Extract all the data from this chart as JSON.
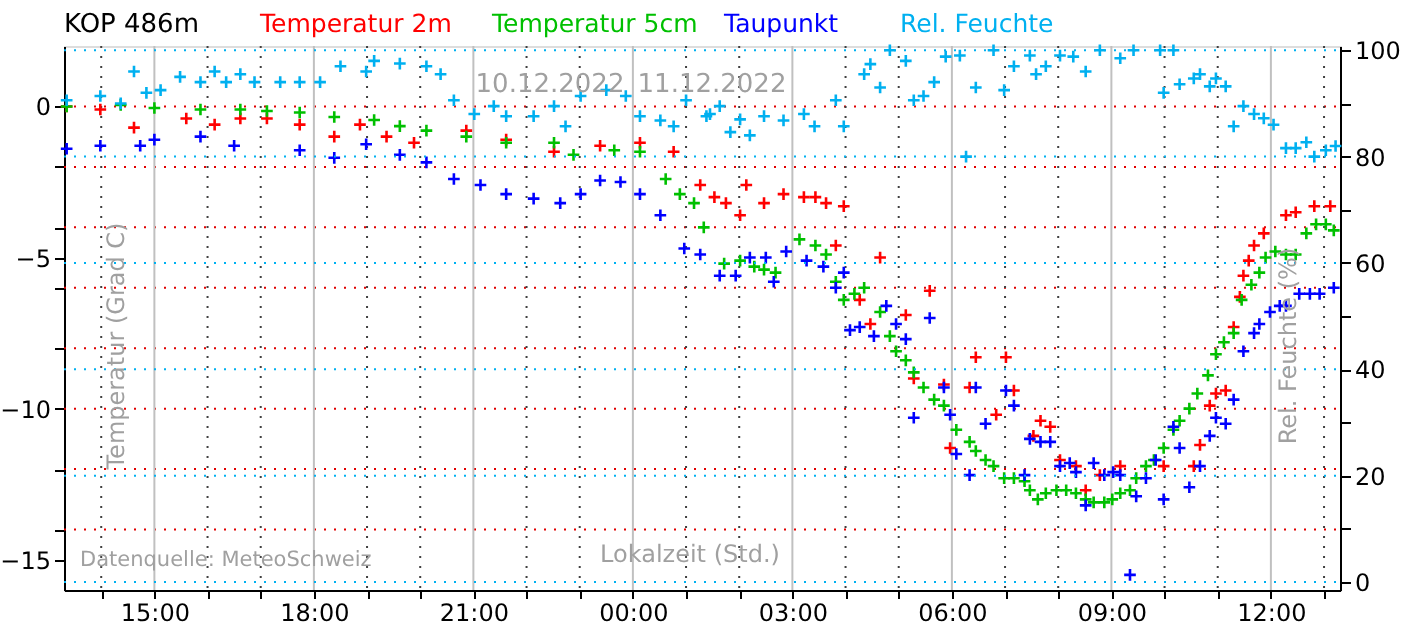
{
  "chart_data": {
    "type": "scatter",
    "title": "KOP  486m",
    "xlabel": "Lokalzeit (Std.)",
    "ylabel": "Temperatur (Grad C)",
    "y2label": "Rel. Feuchte (%)",
    "annotations": [
      "10.12.2022",
      "11.12.2022",
      "Datenquelle: MeteoSchweiz"
    ],
    "xlim": [
      "2022-12-10T13:18",
      "2022-12-11T13:18"
    ],
    "xticks": [
      {
        "value": "2022-12-10T14:00",
        "label": null
      },
      {
        "value": "2022-12-10T15:00",
        "label": "15:00"
      },
      {
        "value": "2022-12-10T16:00",
        "label": null
      },
      {
        "value": "2022-12-10T17:00",
        "label": null
      },
      {
        "value": "2022-12-10T18:00",
        "label": "18:00"
      },
      {
        "value": "2022-12-10T19:00",
        "label": null
      },
      {
        "value": "2022-12-10T20:00",
        "label": null
      },
      {
        "value": "2022-12-10T21:00",
        "label": "21:00"
      },
      {
        "value": "2022-12-10T22:00",
        "label": null
      },
      {
        "value": "2022-12-10T23:00",
        "label": null
      },
      {
        "value": "2022-12-11T00:00",
        "label": "00:00"
      },
      {
        "value": "2022-12-11T01:00",
        "label": null
      },
      {
        "value": "2022-12-11T02:00",
        "label": null
      },
      {
        "value": "2022-12-11T03:00",
        "label": "03:00"
      },
      {
        "value": "2022-12-11T04:00",
        "label": null
      },
      {
        "value": "2022-12-11T05:00",
        "label": null
      },
      {
        "value": "2022-12-11T06:00",
        "label": "06:00"
      },
      {
        "value": "2022-12-11T07:00",
        "label": null
      },
      {
        "value": "2022-12-11T08:00",
        "label": null
      },
      {
        "value": "2022-12-11T09:00",
        "label": "09:00"
      },
      {
        "value": "2022-12-11T10:00",
        "label": null
      },
      {
        "value": "2022-12-11T11:00",
        "label": null
      },
      {
        "value": "2022-12-11T12:00",
        "label": "12:00"
      },
      {
        "value": "2022-12-11T13:00",
        "label": null
      }
    ],
    "ylim": [
      -16,
      2
    ],
    "yticks": [
      -15,
      {
        "value": -14,
        "label": null
      },
      {
        "value": -12,
        "label": null
      },
      -10,
      {
        "value": -8,
        "label": null
      },
      {
        "value": -6,
        "label": null
      },
      -5,
      {
        "value": -4,
        "label": null
      },
      {
        "value": -2,
        "label": null
      },
      0
    ],
    "y2lim": [
      -1.5,
      100.8
    ],
    "y2ticks": [
      0,
      {
        "value": 10,
        "label": null
      },
      20,
      {
        "value": 30,
        "label": null
      },
      40,
      {
        "value": 50,
        "label": null
      },
      60,
      {
        "value": 70,
        "label": null
      },
      80,
      {
        "value": 90,
        "label": null
      },
      100
    ],
    "grid": true,
    "legend": "top",
    "marker": "cross",
    "series": [
      {
        "name": "Temperatur 2m",
        "color": "#ff0000",
        "x": [
          "2022-12-10T13:21",
          "2022-12-10T13:59",
          "2022-12-10T14:37",
          "2022-12-10T15:36",
          "2022-12-10T16:08",
          "2022-12-10T16:37",
          "2022-12-10T17:07",
          "2022-12-10T17:44",
          "2022-12-10T18:23",
          "2022-12-10T18:52",
          "2022-12-10T19:22",
          "2022-12-10T19:53",
          "2022-12-10T20:52",
          "2022-12-10T21:37",
          "2022-12-10T22:31",
          "2022-12-10T23:23",
          "2022-12-11T00:08",
          "2022-12-11T00:46",
          "2022-12-11T01:16",
          "2022-12-11T01:32",
          "2022-12-11T01:45",
          "2022-12-11T02:01",
          "2022-12-11T02:08",
          "2022-12-11T02:28",
          "2022-12-11T02:50",
          "2022-12-11T03:13",
          "2022-12-11T03:26",
          "2022-12-11T03:38",
          "2022-12-11T03:49",
          "2022-12-11T03:58",
          "2022-12-11T04:16",
          "2022-12-11T04:28",
          "2022-12-11T04:39",
          "2022-12-11T05:08",
          "2022-12-11T05:17",
          "2022-12-11T05:35",
          "2022-12-11T05:51",
          "2022-12-11T05:58",
          "2022-12-11T06:20",
          "2022-12-11T06:27",
          "2022-12-11T06:50",
          "2022-12-11T07:01",
          "2022-12-11T07:10",
          "2022-12-11T07:32",
          "2022-12-11T07:40",
          "2022-12-11T07:51",
          "2022-12-11T08:02",
          "2022-12-11T08:20",
          "2022-12-11T08:31",
          "2022-12-11T08:47",
          "2022-12-11T09:10",
          "2022-12-11T09:59",
          "2022-12-11T10:33",
          "2022-12-11T10:40",
          "2022-12-11T10:51",
          "2022-12-11T10:58",
          "2022-12-11T11:09",
          "2022-12-11T11:18",
          "2022-12-11T11:25",
          "2022-12-11T11:29",
          "2022-12-11T11:35",
          "2022-12-11T11:41",
          "2022-12-11T11:52",
          "2022-12-11T12:17",
          "2022-12-11T12:28",
          "2022-12-11T12:49",
          "2022-12-11T13:07"
        ],
        "values": [
          0,
          -0.1,
          -0.7,
          -0.4,
          -0.6,
          -0.4,
          -0.4,
          -0.6,
          -1.0,
          -0.6,
          -1.0,
          -1.2,
          -0.8,
          -1.1,
          -1.5,
          -1.3,
          -1.2,
          -1.5,
          -2.6,
          -3.0,
          -3.2,
          -3.6,
          -2.6,
          -3.2,
          -2.9,
          -3.0,
          -3.0,
          -3.2,
          -4.6,
          -3.3,
          -6.4,
          -7.2,
          -5.0,
          -6.9,
          -9.0,
          -6.1,
          -9.2,
          -11.3,
          -9.3,
          -8.3,
          -10.2,
          -8.3,
          -9.4,
          -10.9,
          -10.4,
          -10.6,
          -11.7,
          -11.9,
          -12.7,
          -12.2,
          -11.9,
          -11.9,
          -11.9,
          -11.2,
          -9.9,
          -9.5,
          -9.4,
          -7.3,
          -6.3,
          -5.6,
          -5.1,
          -4.6,
          -4.2,
          -3.6,
          -3.5,
          -3.3,
          -3.3
        ]
      },
      {
        "name": "Temperatur 5cm",
        "color": "#00c000",
        "x": [
          "2022-12-10T13:21",
          "2022-12-10T14:22",
          "2022-12-10T15:00",
          "2022-12-10T15:52",
          "2022-12-10T16:37",
          "2022-12-10T17:07",
          "2022-12-10T17:44",
          "2022-12-10T18:23",
          "2022-12-10T19:08",
          "2022-12-10T19:37",
          "2022-12-10T20:07",
          "2022-12-10T20:52",
          "2022-12-10T21:37",
          "2022-12-10T22:31",
          "2022-12-10T22:53",
          "2022-12-10T23:39",
          "2022-12-11T00:08",
          "2022-12-11T00:37",
          "2022-12-11T00:53",
          "2022-12-11T01:09",
          "2022-12-11T01:20",
          "2022-12-11T01:43",
          "2022-12-11T02:01",
          "2022-12-11T02:17",
          "2022-12-11T02:28",
          "2022-12-11T02:41",
          "2022-12-11T03:08",
          "2022-12-11T03:26",
          "2022-12-11T03:38",
          "2022-12-11T03:49",
          "2022-12-11T03:58",
          "2022-12-11T04:10",
          "2022-12-11T04:21",
          "2022-12-11T04:39",
          "2022-12-11T04:50",
          "2022-12-11T04:57",
          "2022-12-11T05:08",
          "2022-12-11T05:17",
          "2022-12-11T05:28",
          "2022-12-11T05:40",
          "2022-12-11T05:51",
          "2022-12-11T06:05",
          "2022-12-11T06:20",
          "2022-12-11T06:27",
          "2022-12-11T06:38",
          "2022-12-11T06:47",
          "2022-12-11T06:59",
          "2022-12-11T07:10",
          "2022-12-11T07:22",
          "2022-12-11T07:28",
          "2022-12-11T07:37",
          "2022-12-11T07:46",
          "2022-12-11T07:58",
          "2022-12-11T08:09",
          "2022-12-11T08:20",
          "2022-12-11T08:31",
          "2022-12-11T08:40",
          "2022-12-11T08:52",
          "2022-12-11T09:01",
          "2022-12-11T09:10",
          "2022-12-11T09:21",
          "2022-12-11T09:28",
          "2022-12-11T09:39",
          "2022-12-11T09:48",
          "2022-12-11T09:59",
          "2022-12-11T10:10",
          "2022-12-11T10:17",
          "2022-12-11T10:28",
          "2022-12-11T10:37",
          "2022-12-11T10:49",
          "2022-12-11T10:58",
          "2022-12-11T11:07",
          "2022-12-11T11:18",
          "2022-12-11T11:27",
          "2022-12-11T11:38",
          "2022-12-11T11:47",
          "2022-12-11T11:54",
          "2022-12-11T12:05",
          "2022-12-11T12:17",
          "2022-12-11T12:28",
          "2022-12-11T12:40",
          "2022-12-11T12:51",
          "2022-12-11T13:02",
          "2022-12-11T13:11"
        ],
        "values": [
          0,
          0.05,
          -0.05,
          -0.1,
          -0.1,
          -0.15,
          -0.2,
          -0.35,
          -0.45,
          -0.65,
          -0.8,
          -1.0,
          -1.2,
          -1.2,
          -1.6,
          -1.45,
          -1.5,
          -2.4,
          -2.9,
          -3.2,
          -4.0,
          -5.2,
          -5.1,
          -5.3,
          -5.4,
          -5.5,
          -4.4,
          -4.6,
          -4.9,
          -5.8,
          -6.4,
          -6.2,
          -6.0,
          -6.8,
          -7.6,
          -8.1,
          -8.4,
          -8.8,
          -9.3,
          -9.7,
          -9.9,
          -10.7,
          -11.1,
          -11.4,
          -11.7,
          -11.9,
          -12.3,
          -12.3,
          -12.4,
          -12.7,
          -13.0,
          -12.8,
          -12.7,
          -12.7,
          -12.8,
          -13.0,
          -13.1,
          -13.1,
          -13.0,
          -12.8,
          -12.7,
          -12.3,
          -11.9,
          -11.7,
          -11.3,
          -10.7,
          -10.4,
          -10.0,
          -9.5,
          -8.9,
          -8.2,
          -7.8,
          -7.5,
          -6.4,
          -5.9,
          -5.5,
          -5.0,
          -4.8,
          -4.9,
          -4.9,
          -4.2,
          -3.9,
          -3.9,
          -4.1
        ]
      },
      {
        "name": "Taupunkt",
        "color": "#0000ff",
        "x": [
          "2022-12-10T13:21",
          "2022-12-10T13:59",
          "2022-12-10T14:44",
          "2022-12-10T15:00",
          "2022-12-10T15:52",
          "2022-12-10T16:30",
          "2022-12-10T17:44",
          "2022-12-10T18:23",
          "2022-12-10T18:59",
          "2022-12-10T19:37",
          "2022-12-10T20:07",
          "2022-12-10T20:38",
          "2022-12-10T21:08",
          "2022-12-10T21:37",
          "2022-12-10T22:08",
          "2022-12-10T22:38",
          "2022-12-10T23:01",
          "2022-12-10T23:23",
          "2022-12-10T23:46",
          "2022-12-11T00:08",
          "2022-12-11T00:31",
          "2022-12-11T00:58",
          "2022-12-11T01:16",
          "2022-12-11T01:38",
          "2022-12-11T01:56",
          "2022-12-11T02:12",
          "2022-12-11T02:30",
          "2022-12-11T02:39",
          "2022-12-11T02:53",
          "2022-12-11T03:16",
          "2022-12-11T03:35",
          "2022-12-11T03:49",
          "2022-12-11T03:58",
          "2022-12-11T04:05",
          "2022-12-11T04:16",
          "2022-12-11T04:32",
          "2022-12-11T04:46",
          "2022-12-11T04:57",
          "2022-12-11T05:08",
          "2022-12-11T05:17",
          "2022-12-11T05:35",
          "2022-12-11T05:51",
          "2022-12-11T05:58",
          "2022-12-11T06:05",
          "2022-12-11T06:20",
          "2022-12-11T06:27",
          "2022-12-11T06:38",
          "2022-12-11T07:01",
          "2022-12-11T07:10",
          "2022-12-11T07:22",
          "2022-12-11T07:28",
          "2022-12-11T07:40",
          "2022-12-11T07:51",
          "2022-12-11T08:02",
          "2022-12-11T08:13",
          "2022-12-11T08:20",
          "2022-12-11T08:31",
          "2022-12-11T08:40",
          "2022-12-11T08:52",
          "2022-12-11T09:02",
          "2022-12-11T09:10",
          "2022-12-11T09:21",
          "2022-12-11T09:28",
          "2022-12-11T09:39",
          "2022-12-11T09:50",
          "2022-12-11T09:59",
          "2022-12-11T10:10",
          "2022-12-11T10:17",
          "2022-12-11T10:28",
          "2022-12-11T10:40",
          "2022-12-11T10:51",
          "2022-12-11T10:58",
          "2022-12-11T11:09",
          "2022-12-11T11:18",
          "2022-12-11T11:29",
          "2022-12-11T11:41",
          "2022-12-11T11:47",
          "2022-12-11T11:59",
          "2022-12-11T12:10",
          "2022-12-11T12:17",
          "2022-12-11T12:32",
          "2022-12-11T12:44",
          "2022-12-11T12:55",
          "2022-12-11T13:11"
        ],
        "values": [
          -1.4,
          -1.3,
          -1.3,
          -1.1,
          -1.0,
          -1.3,
          -1.45,
          -1.7,
          -1.25,
          -1.6,
          -1.85,
          -2.4,
          -2.6,
          -2.9,
          -3.05,
          -3.2,
          -2.9,
          -2.45,
          -2.5,
          -2.9,
          -3.6,
          -4.7,
          -4.9,
          -5.6,
          -5.6,
          -5.0,
          -5.0,
          -5.8,
          -4.8,
          -5.1,
          -5.3,
          -6.0,
          -5.5,
          -7.4,
          -7.3,
          -7.6,
          -6.6,
          -7.2,
          -7.7,
          -10.3,
          -7.0,
          -9.3,
          -10.2,
          -11.5,
          -12.2,
          -9.3,
          -10.5,
          -9.4,
          -9.9,
          -12.2,
          -11.0,
          -11.1,
          -11.1,
          -11.9,
          -11.8,
          -12.1,
          -13.2,
          -11.8,
          -12.2,
          -12.1,
          -12.2,
          -15.5,
          -12.9,
          -12.3,
          -11.7,
          -13.0,
          -10.6,
          -11.3,
          -12.6,
          -11.9,
          -10.9,
          -10.3,
          -10.5,
          -9.7,
          -8.1,
          -7.5,
          -7.2,
          -6.8,
          -6.6,
          -6.6,
          -6.2,
          -6.2,
          -6.2,
          -6.0
        ]
      },
      {
        "name": "Rel. Feuchte",
        "color": "#00b0f0",
        "axis": "y2",
        "x": [
          "2022-12-10T13:21",
          "2022-12-10T13:59",
          "2022-12-10T14:22",
          "2022-12-10T14:37",
          "2022-12-10T14:51",
          "2022-12-10T15:07",
          "2022-12-10T15:29",
          "2022-12-10T15:52",
          "2022-12-10T16:08",
          "2022-12-10T16:21",
          "2022-12-10T16:37",
          "2022-12-10T16:53",
          "2022-12-10T17:22",
          "2022-12-10T17:44",
          "2022-12-10T18:07",
          "2022-12-10T18:30",
          "2022-12-10T18:59",
          "2022-12-10T19:08",
          "2022-12-10T19:37",
          "2022-12-10T20:07",
          "2022-12-10T20:23",
          "2022-12-10T20:38",
          "2022-12-10T21:01",
          "2022-12-10T21:23",
          "2022-12-10T21:37",
          "2022-12-10T22:08",
          "2022-12-10T22:31",
          "2022-12-10T22:44",
          "2022-12-10T23:01",
          "2022-12-10T23:30",
          "2022-12-10T23:52",
          "2022-12-11T00:08",
          "2022-12-11T00:31",
          "2022-12-11T00:46",
          "2022-12-11T01:00",
          "2022-12-11T01:23",
          "2022-12-11T01:27",
          "2022-12-11T01:38",
          "2022-12-11T01:50",
          "2022-12-11T02:01",
          "2022-12-11T02:12",
          "2022-12-11T02:28",
          "2022-12-11T02:50",
          "2022-12-11T03:13",
          "2022-12-11T03:25",
          "2022-12-11T03:49",
          "2022-12-11T03:58",
          "2022-12-11T04:21",
          "2022-12-11T04:28",
          "2022-12-11T04:39",
          "2022-12-11T04:50",
          "2022-12-11T05:08",
          "2022-12-11T05:17",
          "2022-12-11T05:28",
          "2022-12-11T05:40",
          "2022-12-11T05:53",
          "2022-12-11T06:09",
          "2022-12-11T06:16",
          "2022-12-11T06:27",
          "2022-12-11T06:47",
          "2022-12-11T06:59",
          "2022-12-11T07:10",
          "2022-12-11T07:28",
          "2022-12-11T07:35",
          "2022-12-11T07:46",
          "2022-12-11T08:02",
          "2022-12-11T08:17",
          "2022-12-11T08:31",
          "2022-12-11T08:47",
          "2022-12-11T09:10",
          "2022-12-11T09:25",
          "2022-12-11T09:55",
          "2022-12-11T09:59",
          "2022-12-11T10:10",
          "2022-12-11T10:17",
          "2022-12-11T10:33",
          "2022-12-11T10:40",
          "2022-12-11T10:51",
          "2022-12-11T10:58",
          "2022-12-11T11:09",
          "2022-12-11T11:18",
          "2022-12-11T11:29",
          "2022-12-11T11:41",
          "2022-12-11T11:52",
          "2022-12-11T12:03",
          "2022-12-11T12:17",
          "2022-12-11T12:28",
          "2022-12-11T12:40",
          "2022-12-11T12:49",
          "2022-12-11T13:02",
          "2022-12-11T13:13"
        ],
        "values": [
          90.6,
          91.4,
          90,
          96,
          92,
          92.5,
          95,
          94,
          96,
          94,
          95.5,
          94,
          94,
          94,
          94,
          97,
          96,
          98,
          97.5,
          97,
          95.5,
          90.6,
          88,
          89.5,
          87.6,
          87.6,
          89.5,
          85.7,
          91.4,
          92.5,
          91.4,
          87.6,
          86.8,
          85.7,
          90.6,
          87.6,
          88,
          89.5,
          84.6,
          87,
          84,
          87.6,
          86.8,
          88,
          85.7,
          90.6,
          85.7,
          95.5,
          97.4,
          93,
          100,
          98,
          90.6,
          91.4,
          94,
          98.8,
          99,
          80,
          93,
          100,
          92.5,
          97,
          99,
          95.5,
          97,
          99,
          98.8,
          96,
          100,
          98.5,
          100,
          100,
          92,
          100,
          93.6,
          94.7,
          95.5,
          93.2,
          94.7,
          93.2,
          85.7,
          89.5,
          88,
          87.2,
          86,
          81.6,
          81.6,
          82.7,
          80,
          81.2,
          82
        ]
      }
    ]
  }
}
